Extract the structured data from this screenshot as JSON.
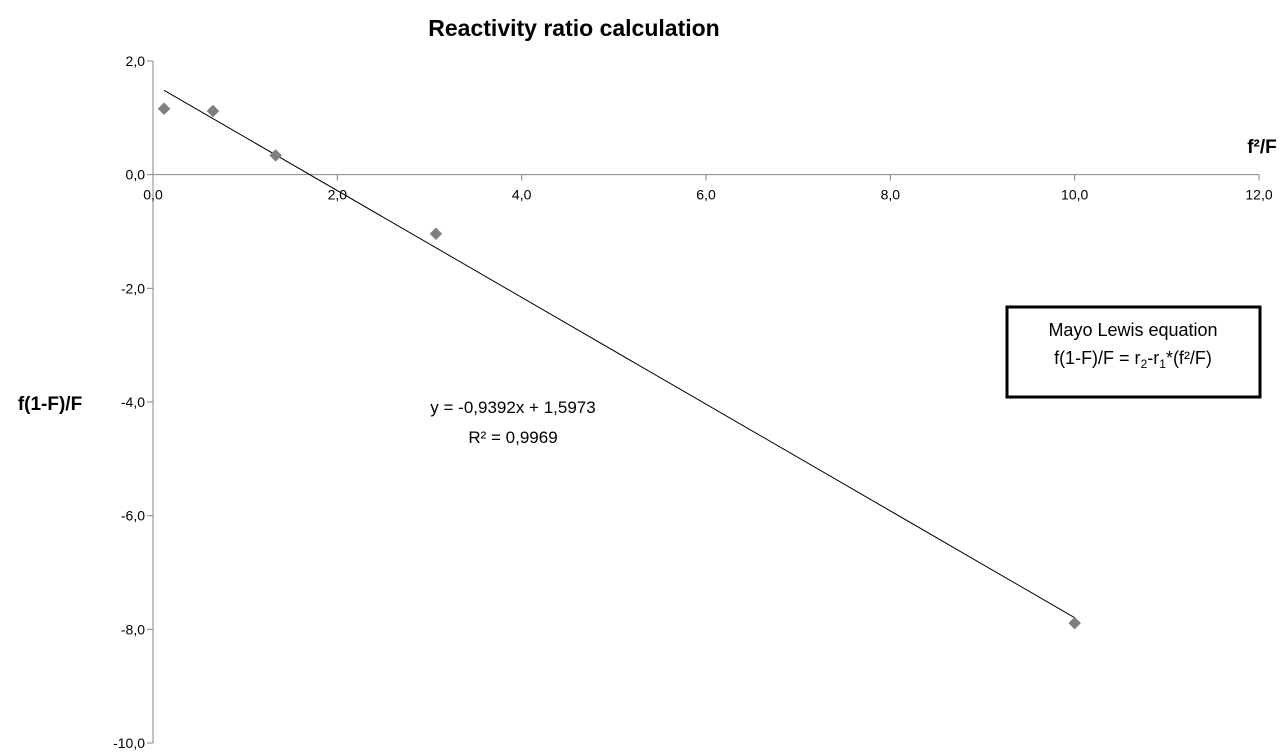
{
  "chart_data": {
    "type": "scatter",
    "title": "Reactivity ratio calculation",
    "xlabel": "f²/F",
    "ylabel": "f(1-F)/F",
    "xlim": [
      0,
      12
    ],
    "ylim": [
      -10,
      2
    ],
    "x_ticks": [
      0,
      2,
      4,
      6,
      8,
      10,
      12
    ],
    "x_tick_labels": [
      "0,0",
      "2,0",
      "4,0",
      "6,0",
      "8,0",
      "10,0",
      "12,0"
    ],
    "y_ticks": [
      2,
      0,
      -2,
      -4,
      -6,
      -8,
      -10
    ],
    "y_tick_labels": [
      "2,0",
      "0,0",
      "-2,0",
      "-4,0",
      "-6,0",
      "-8,0",
      "-10,0"
    ],
    "grid": false,
    "series": [
      {
        "marker": "diamond",
        "color": "#7f7f7f",
        "x": [
          0.12,
          0.65,
          1.33,
          3.07,
          10.0
        ],
        "y": [
          1.16,
          1.12,
          0.34,
          -1.04,
          -7.89
        ]
      }
    ],
    "trendline": {
      "slope": -0.9392,
      "intercept": 1.5973,
      "x_range": [
        0.12,
        10.0
      ],
      "color": "#000000",
      "equation_label": "y = -0,9392x + 1,5973",
      "r2_label": "R² = 0,9969"
    },
    "annotation_box": {
      "line1": "Mayo Lewis equation",
      "line2_prefix": "f(1-F)/F = r",
      "sub1": "2",
      "line2_middle": "-r",
      "sub2": "1",
      "line2_suffix": "*(f²/F)"
    }
  }
}
